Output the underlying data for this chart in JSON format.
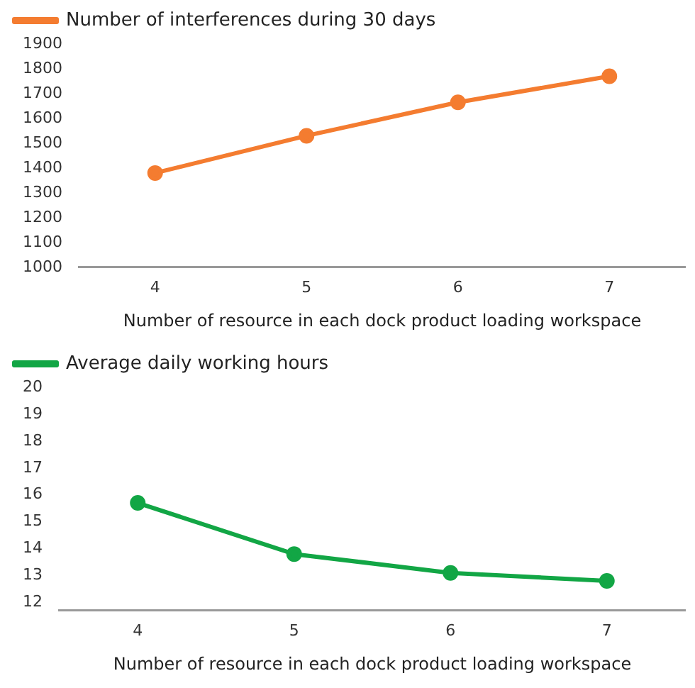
{
  "chart_data": [
    {
      "type": "line",
      "xlabel": "Number of resource in each dock product loading workspace",
      "categories": [
        "4",
        "5",
        "6",
        "7"
      ],
      "series": [
        {
          "name": "Number of interferences during 30 days",
          "color": "#f47c30",
          "values": [
            1380,
            1530,
            1665,
            1770
          ]
        }
      ],
      "ylim": [
        1000,
        1900
      ],
      "yticks": [
        1000,
        1100,
        1200,
        1300,
        1400,
        1500,
        1600,
        1700,
        1800,
        1900
      ],
      "grid": false,
      "legend": "top left",
      "marker": "circle",
      "line_style": "solid"
    },
    {
      "type": "line",
      "xlabel": "Number of resource in each dock product loading workspace",
      "categories": [
        "4",
        "5",
        "6",
        "7"
      ],
      "series": [
        {
          "name": "Average daily working hours",
          "color": "#12a645",
          "values": [
            15.7,
            13.8,
            13.1,
            12.8
          ]
        }
      ],
      "ylim": [
        11.7,
        20
      ],
      "yticks": [
        12,
        13,
        14,
        15,
        16,
        17,
        18,
        19,
        20
      ],
      "grid": false,
      "legend": "top left",
      "marker": "circle",
      "line_style": "solid"
    }
  ]
}
